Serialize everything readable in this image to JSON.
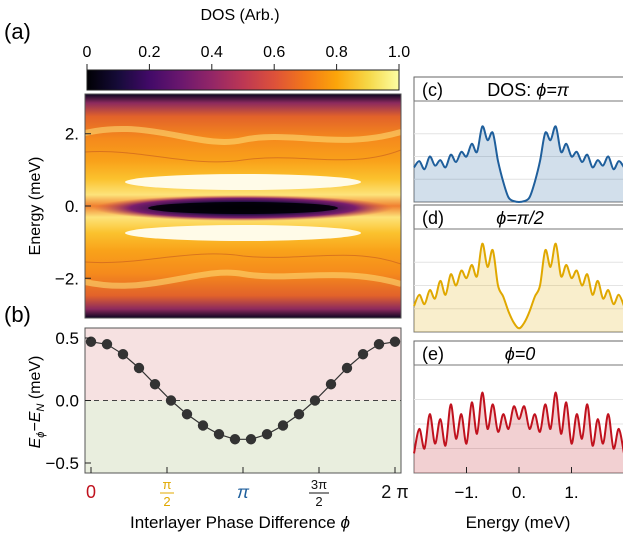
{
  "panel_labels": {
    "a": "(a)",
    "b": "(b)",
    "c": "(c)",
    "d": "(d)",
    "e": "(e)"
  },
  "colorbar": {
    "label": "DOS (Arb.)",
    "ticks": [
      "0",
      "0.2",
      "0.4",
      "0.6",
      "0.8",
      "1.0"
    ],
    "tick_values": [
      0,
      0.2,
      0.4,
      0.6,
      0.8,
      1.0
    ]
  },
  "colors": {
    "pi": "#1f5f9c",
    "half_pi": "#e0a800",
    "zero": "#c0121e",
    "two_pi": "#111111",
    "three_half_pi": "#111111",
    "energy_pos_bg": "#f6e1e1",
    "energy_neg_bg": "#e9eede",
    "marker": "#333333"
  },
  "chart_data": [
    {
      "id": "a",
      "type": "heatmap",
      "ylabel": "Energy (meV)",
      "y_ticks": [
        "2.",
        "0.",
        "−2."
      ],
      "y_tick_values": [
        2,
        0,
        -2
      ],
      "ylim": [
        -3.1,
        3.1
      ],
      "xlim": [
        0,
        6.2832
      ],
      "colorbar_range": [
        0,
        1
      ]
    },
    {
      "id": "b",
      "type": "scatter",
      "ylabel": "Eϕ−EN (meV)",
      "ylabel_main": "E",
      "ylabel_sub1": "ϕ",
      "ylabel_mid": "−E",
      "ylabel_sub2": "N",
      "ylabel_unit": " (meV)",
      "xlabel": "Interlayer Phase Difference ϕ",
      "xlabel_main": "Interlayer Phase Difference ",
      "xlabel_phi": "ϕ",
      "y_ticks": [
        "0.5",
        "0.0",
        "−0.5"
      ],
      "y_tick_values": [
        0.5,
        0.0,
        -0.5
      ],
      "ylim": [
        -0.58,
        0.58
      ],
      "x_tick_values": [
        0,
        1.5708,
        3.1416,
        4.7124,
        6.2832
      ],
      "x_ticks_simple": {
        "zero": "0",
        "pi": "π",
        "two_pi": "2 π"
      },
      "x_ticks_frac": {
        "half_num": "π",
        "half_den": "2",
        "three_half_num": "3π",
        "three_half_den": "2"
      },
      "xlim": [
        0,
        6.2832
      ],
      "reference_line": 0.0,
      "x": [
        0.0,
        0.3307,
        0.6614,
        0.9921,
        1.3228,
        1.6535,
        1.9842,
        2.3149,
        2.6456,
        2.9763,
        3.307,
        3.6377,
        3.9684,
        4.2991,
        4.6298,
        4.9605,
        5.2912,
        5.6219,
        5.9526,
        6.2832
      ],
      "y": [
        0.47,
        0.45,
        0.37,
        0.26,
        0.13,
        0.0,
        -0.11,
        -0.2,
        -0.27,
        -0.31,
        -0.31,
        -0.27,
        -0.2,
        -0.11,
        0.0,
        0.13,
        0.26,
        0.37,
        0.45,
        0.47
      ]
    },
    {
      "id": "c",
      "type": "area",
      "title_prefix": "DOS: ",
      "title_phi": "ϕ",
      "title_rest": "=π",
      "color_key": "pi",
      "xlim": [
        -2.0,
        2.0
      ],
      "ylim": [
        0,
        1.0
      ],
      "x": [
        -2.0,
        -1.9,
        -1.8,
        -1.7,
        -1.6,
        -1.5,
        -1.4,
        -1.3,
        -1.2,
        -1.1,
        -1.0,
        -0.9,
        -0.8,
        -0.7,
        -0.6,
        -0.5,
        -0.4,
        -0.3,
        -0.2,
        -0.1,
        0.0,
        0.1,
        0.2,
        0.3,
        0.4,
        0.5,
        0.6,
        0.7,
        0.8,
        0.9,
        1.0,
        1.1,
        1.2,
        1.3,
        1.4,
        1.5,
        1.6,
        1.7,
        1.8,
        1.9,
        2.0
      ],
      "values": [
        0.38,
        0.45,
        0.36,
        0.5,
        0.4,
        0.46,
        0.38,
        0.52,
        0.44,
        0.55,
        0.5,
        0.64,
        0.55,
        0.83,
        0.68,
        0.76,
        0.45,
        0.22,
        0.05,
        0.01,
        0.0,
        0.01,
        0.05,
        0.22,
        0.45,
        0.76,
        0.68,
        0.83,
        0.55,
        0.64,
        0.5,
        0.55,
        0.44,
        0.52,
        0.38,
        0.46,
        0.4,
        0.5,
        0.36,
        0.45,
        0.38
      ]
    },
    {
      "id": "d",
      "type": "area",
      "title_phi": "ϕ",
      "title_rest": "=π/2",
      "color_key": "half_pi",
      "xlim": [
        -2.0,
        2.0
      ],
      "ylim": [
        0,
        1.0
      ],
      "x": [
        -2.0,
        -1.9,
        -1.8,
        -1.7,
        -1.6,
        -1.5,
        -1.4,
        -1.3,
        -1.2,
        -1.1,
        -1.0,
        -0.9,
        -0.8,
        -0.7,
        -0.6,
        -0.5,
        -0.4,
        -0.3,
        -0.2,
        -0.1,
        0.0,
        0.1,
        0.2,
        0.3,
        0.4,
        0.5,
        0.6,
        0.7,
        0.8,
        0.9,
        1.0,
        1.1,
        1.2,
        1.3,
        1.4,
        1.5,
        1.6,
        1.7,
        1.8,
        1.9,
        2.0
      ],
      "values": [
        0.28,
        0.4,
        0.3,
        0.45,
        0.36,
        0.55,
        0.4,
        0.62,
        0.5,
        0.66,
        0.58,
        0.72,
        0.6,
        0.95,
        0.7,
        0.88,
        0.5,
        0.38,
        0.22,
        0.1,
        0.04,
        0.1,
        0.22,
        0.38,
        0.5,
        0.88,
        0.7,
        0.95,
        0.6,
        0.72,
        0.58,
        0.66,
        0.5,
        0.62,
        0.4,
        0.55,
        0.36,
        0.45,
        0.3,
        0.4,
        0.28
      ]
    },
    {
      "id": "e",
      "type": "area",
      "title_phi": "ϕ",
      "title_rest": "=0",
      "color_key": "zero",
      "xlabel": "Energy (meV)",
      "x_ticks": [
        "−1.",
        "0.",
        "1."
      ],
      "x_tick_values": [
        -1,
        0,
        1
      ],
      "xlim": [
        -2.0,
        2.0
      ],
      "ylim": [
        0,
        1.0
      ],
      "x": [
        -2.0,
        -1.9,
        -1.8,
        -1.7,
        -1.6,
        -1.5,
        -1.4,
        -1.3,
        -1.2,
        -1.1,
        -1.0,
        -0.9,
        -0.8,
        -0.7,
        -0.6,
        -0.5,
        -0.4,
        -0.3,
        -0.2,
        -0.1,
        0.0,
        0.1,
        0.2,
        0.3,
        0.4,
        0.5,
        0.6,
        0.7,
        0.8,
        0.9,
        1.0,
        1.1,
        1.2,
        1.3,
        1.4,
        1.5,
        1.6,
        1.7,
        1.8,
        1.9,
        2.0
      ],
      "values": [
        0.2,
        0.45,
        0.25,
        0.6,
        0.3,
        0.55,
        0.28,
        0.7,
        0.35,
        0.6,
        0.3,
        0.72,
        0.4,
        0.82,
        0.45,
        0.7,
        0.42,
        0.6,
        0.45,
        0.68,
        0.55,
        0.68,
        0.45,
        0.6,
        0.42,
        0.7,
        0.45,
        0.82,
        0.4,
        0.72,
        0.3,
        0.6,
        0.35,
        0.7,
        0.28,
        0.55,
        0.3,
        0.6,
        0.25,
        0.45,
        0.2
      ]
    }
  ]
}
